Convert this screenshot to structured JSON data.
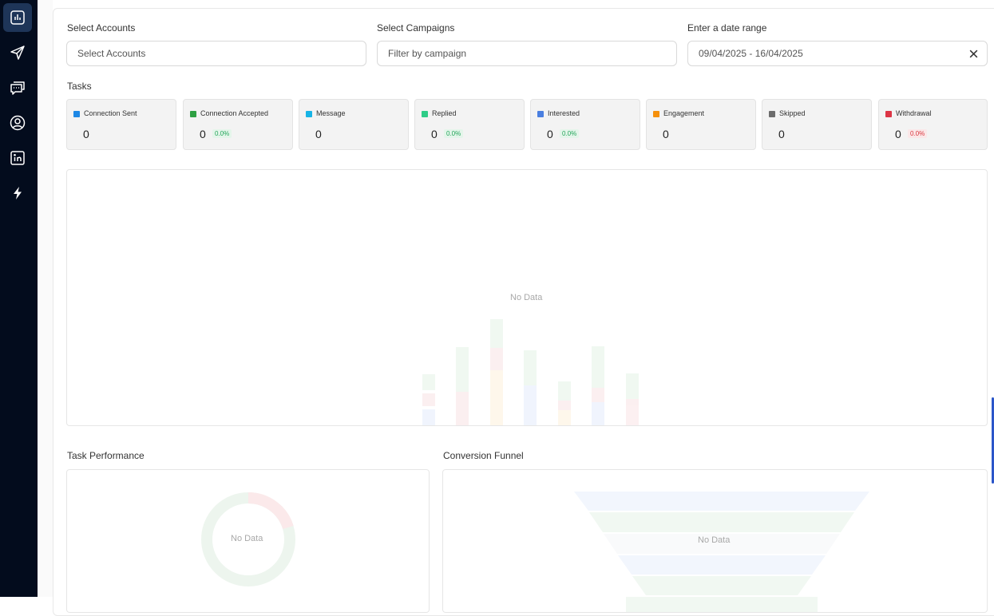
{
  "sidebar": {
    "items": [
      {
        "name": "analytics",
        "icon": "chart-bar-icon",
        "active": true
      },
      {
        "name": "campaigns",
        "icon": "send-icon",
        "active": false
      },
      {
        "name": "messages",
        "icon": "chat-icon",
        "active": false
      },
      {
        "name": "profile",
        "icon": "user-circle-icon",
        "active": false
      },
      {
        "name": "linkedin",
        "icon": "linkedin-icon",
        "active": false
      },
      {
        "name": "automation",
        "icon": "bolt-icon",
        "active": false
      }
    ]
  },
  "filters": {
    "accounts_label": "Select Accounts",
    "accounts_placeholder": "Select Accounts",
    "campaigns_label": "Select Campaigns",
    "campaigns_placeholder": "Filter by campaign",
    "date_label": "Enter a date range",
    "date_value": "09/04/2025 - 16/04/2025"
  },
  "tasks": {
    "heading": "Tasks",
    "cards": [
      {
        "name": "Connection Sent",
        "value": "0",
        "color": "#1e88e5"
      },
      {
        "name": "Connection Accepted",
        "value": "0",
        "pct": "0.0%",
        "pct_color": "green",
        "color": "#2ea043"
      },
      {
        "name": "Message",
        "value": "0",
        "color": "#17b4e6"
      },
      {
        "name": "Replied",
        "value": "0",
        "pct": "0.0%",
        "pct_color": "green",
        "color": "#2ecc87"
      },
      {
        "name": "Interested",
        "value": "0",
        "pct": "0.0%",
        "pct_color": "green",
        "color": "#4a7fe0"
      },
      {
        "name": "Engagement",
        "value": "0",
        "color": "#f5900c"
      },
      {
        "name": "Skipped",
        "value": "0",
        "color": "#6c6c6c"
      },
      {
        "name": "Withdrawal",
        "value": "0",
        "pct": "0.0%",
        "pct_color": "red",
        "color": "#dc3545"
      }
    ]
  },
  "main_chart": {
    "empty_text": "No Data"
  },
  "task_performance": {
    "title": "Task Performance",
    "empty_text": "No Data"
  },
  "conversion_funnel": {
    "title": "Conversion Funnel",
    "empty_text": "No Data"
  }
}
